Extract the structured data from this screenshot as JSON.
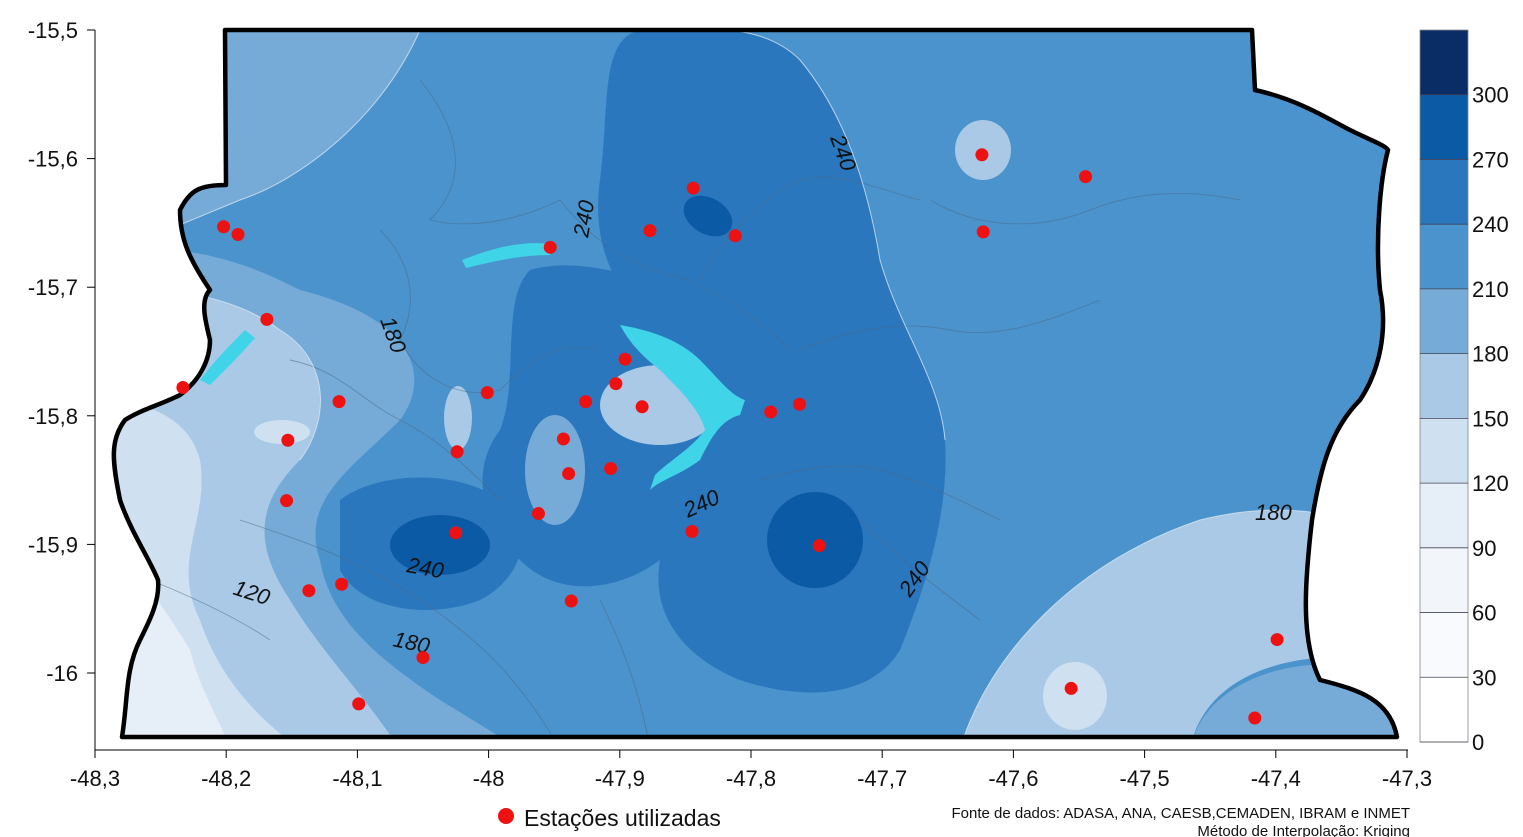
{
  "map": {
    "x_ticks": [
      "-48,3",
      "-48,2",
      "-48,1",
      "-48",
      "-47,9",
      "-47,8",
      "-47,7",
      "-47,6",
      "-47,5",
      "-47,4",
      "-47,3"
    ],
    "y_ticks": [
      "-15,5",
      "-15,6",
      "-15,7",
      "-15,8",
      "-15,9",
      "-16"
    ],
    "contour_labels": [
      "240",
      "180",
      "240",
      "240",
      "240",
      "120",
      "180",
      "240",
      "180"
    ],
    "stations": [
      {
        "lon": -48.202,
        "lat": -15.653
      },
      {
        "lon": -48.191,
        "lat": -15.659
      },
      {
        "lon": -48.169,
        "lat": -15.725
      },
      {
        "lon": -48.233,
        "lat": -15.778
      },
      {
        "lon": -48.114,
        "lat": -15.789
      },
      {
        "lon": -48.153,
        "lat": -15.819
      },
      {
        "lon": -48.154,
        "lat": -15.866
      },
      {
        "lon": -48.024,
        "lat": -15.828
      },
      {
        "lon": -48.001,
        "lat": -15.782
      },
      {
        "lon": -47.953,
        "lat": -15.669
      },
      {
        "lon": -47.877,
        "lat": -15.656
      },
      {
        "lon": -47.844,
        "lat": -15.623
      },
      {
        "lon": -47.812,
        "lat": -15.66
      },
      {
        "lon": -47.896,
        "lat": -15.756
      },
      {
        "lon": -47.903,
        "lat": -15.775
      },
      {
        "lon": -47.926,
        "lat": -15.789
      },
      {
        "lon": -47.883,
        "lat": -15.793
      },
      {
        "lon": -47.943,
        "lat": -15.818
      },
      {
        "lon": -47.939,
        "lat": -15.845
      },
      {
        "lon": -47.907,
        "lat": -15.841
      },
      {
        "lon": -47.962,
        "lat": -15.876
      },
      {
        "lon": -48.025,
        "lat": -15.891
      },
      {
        "lon": -48.137,
        "lat": -15.936
      },
      {
        "lon": -48.112,
        "lat": -15.931
      },
      {
        "lon": -47.937,
        "lat": -15.944
      },
      {
        "lon": -47.845,
        "lat": -15.89
      },
      {
        "lon": -47.785,
        "lat": -15.797
      },
      {
        "lon": -47.763,
        "lat": -15.791
      },
      {
        "lon": -47.748,
        "lat": -15.901
      },
      {
        "lon": -47.624,
        "lat": -15.597
      },
      {
        "lon": -47.623,
        "lat": -15.657
      },
      {
        "lon": -47.545,
        "lat": -15.614
      },
      {
        "lon": -48.05,
        "lat": -15.988
      },
      {
        "lon": -48.099,
        "lat": -16.024
      },
      {
        "lon": -47.556,
        "lat": -16.012
      },
      {
        "lon": -47.399,
        "lat": -15.974
      },
      {
        "lon": -47.416,
        "lat": -16.035
      }
    ]
  },
  "legend": {
    "ticks": [
      "300",
      "270",
      "240",
      "210",
      "180",
      "150",
      "120",
      "90",
      "60",
      "30",
      "0"
    ],
    "colors": [
      "#0b2d66",
      "#0b5aa6",
      "#2a77be",
      "#4a93cc",
      "#76abd7",
      "#a9c9e6",
      "#cfe0f1",
      "#e6eff8",
      "#f2f6fb",
      "#f8fafd",
      "#ffffff"
    ]
  },
  "station_legend": "Estações utilizadas",
  "source": {
    "line1": "Fonte de dados: ADASA, ANA, CAESB,CEMADEN, IBRAM e INMET",
    "line2": "Método de Interpolação: Kriging"
  }
}
